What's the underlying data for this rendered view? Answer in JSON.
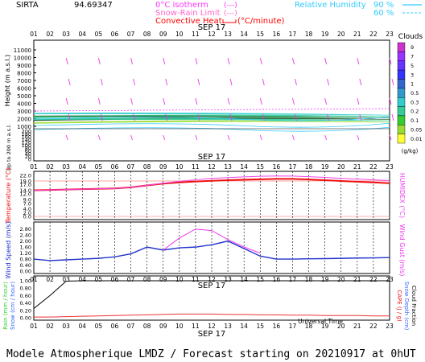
{
  "header": {
    "station": "SIRTA",
    "station_value": "94.69347",
    "legend": [
      {
        "label": "0°C isotherm",
        "color": "#ff33ff"
      },
      {
        "label": "Snow-Rain Limit",
        "color": "#ff66cc"
      },
      {
        "label": "Convective Heat.",
        "color": "#ff0000"
      }
    ],
    "convective_unit": "(°C/minute)",
    "humidity": {
      "label": "Relative Humidity",
      "v1": "90 %",
      "v2": "60 %",
      "color": "#33ccff"
    }
  },
  "hours": [
    "01",
    "02",
    "03",
    "04",
    "05",
    "06",
    "07",
    "08",
    "09",
    "10",
    "11",
    "12",
    "13",
    "14",
    "15",
    "16",
    "17",
    "18",
    "19",
    "20",
    "21",
    "22",
    "23"
  ],
  "date_label": "SEP 17",
  "universal_time": "Universal Time",
  "footer": "Modele Atmospherique LMDZ / Forecast starting on 20210917 at 0hUT",
  "chart_data": [
    {
      "type": "heatmap",
      "title": "Clouds",
      "ylabel": "Height (m a.s.l.)",
      "ylabel2": "Up to 200 m a.s.l.",
      "yticks_upper": [
        "11000",
        "10000",
        "9000",
        "8000",
        "7000",
        "6000",
        "5000",
        "4000",
        "3000",
        "2000",
        "1000"
      ],
      "yticks_lower": [
        "200",
        "180",
        "160",
        "140",
        "120",
        "100",
        "80",
        "60",
        "40",
        "20",
        "0"
      ],
      "colorbar": {
        "label": "Clouds",
        "unit": "(g/kg)",
        "ticks": [
          "9",
          "7",
          "5",
          "3",
          "1",
          "0.5",
          "0.3",
          "0.2",
          "0.1",
          "0.05",
          "0.01"
        ],
        "colors": [
          "#cc33cc",
          "#9933ff",
          "#6633ff",
          "#3333ff",
          "#3366cc",
          "#3399cc",
          "#33cccc",
          "#33cc99",
          "#33cc33",
          "#99dd33",
          "#ffff33"
        ]
      },
      "isotherm_0C_m": 3000,
      "cloud_layer_m": [
        1500,
        2600
      ]
    },
    {
      "type": "line",
      "ylabel": "Temperature (°C)",
      "ylabel2": "HUMIDEX (°C)",
      "yticks": [
        "22.0",
        "19.0",
        "17.0",
        "14.0",
        "12.0",
        "9.0",
        "7.0",
        "4.0",
        "2.0",
        "0.0"
      ],
      "ylim": [
        0,
        22
      ],
      "x": [
        "01",
        "02",
        "03",
        "04",
        "05",
        "06",
        "07",
        "08",
        "09",
        "10",
        "11",
        "12",
        "13",
        "14",
        "15",
        "16",
        "17",
        "18",
        "19",
        "20",
        "21",
        "22",
        "23"
      ],
      "series": [
        {
          "name": "Temperature",
          "color": "#ee1111",
          "values": [
            14.0,
            14.2,
            14.4,
            14.6,
            14.8,
            15.0,
            15.6,
            16.6,
            17.6,
            18.2,
            18.7,
            19.1,
            19.4,
            19.7,
            19.9,
            20.1,
            20.1,
            19.8,
            19.4,
            19.0,
            18.6,
            18.2,
            17.8
          ]
        },
        {
          "name": "HUMIDEX",
          "color": "#ee44ee",
          "values": [
            14.0,
            14.2,
            14.4,
            14.6,
            14.8,
            15.0,
            15.6,
            16.6,
            17.8,
            18.8,
            19.6,
            20.4,
            20.8,
            21.2,
            21.5,
            21.7,
            21.6,
            21.3,
            20.9,
            20.4,
            20.0,
            19.6,
            19.2
          ]
        }
      ],
      "hlines": [
        19.0,
        0.0
      ]
    },
    {
      "type": "line",
      "ylabel": "Wind Speed (m/s)",
      "ylabel2": "Wind Gust (m/s)",
      "yticks": [
        "2.80",
        "2.40",
        "2.00",
        "1.60",
        "1.20",
        "0.80",
        "0.40",
        "0.00"
      ],
      "ylim": [
        0,
        3.0
      ],
      "series": [
        {
          "name": "Wind Speed",
          "color": "#2233cc",
          "values": [
            0.8,
            0.7,
            0.75,
            0.8,
            0.85,
            0.95,
            1.15,
            1.6,
            1.4,
            1.55,
            1.6,
            1.75,
            2.0,
            1.5,
            1.0,
            0.8,
            0.8,
            0.82,
            0.83,
            0.85,
            0.87,
            0.88,
            0.9
          ]
        },
        {
          "name": "Wind Gust",
          "color": "#ee33ee",
          "values": [
            null,
            null,
            null,
            null,
            null,
            null,
            null,
            null,
            1.4,
            2.2,
            2.8,
            2.7,
            2.1,
            1.6,
            1.2,
            null,
            null,
            null,
            null,
            null,
            null,
            null,
            null
          ]
        }
      ]
    },
    {
      "type": "line",
      "ylabel": "Rain (mm / hour)",
      "ylabel_snow": "Snow (cm / hour)",
      "ylabel2": "CAPE (J / g)",
      "ylabel3": "Snow Depth (cm)",
      "ylabel4": "Cloud Fraction",
      "yticks": [
        "1.00",
        "0.80",
        "0.60",
        "0.40",
        "0.20",
        "0.00"
      ],
      "ylim": [
        0,
        1.0
      ],
      "series": [
        {
          "name": "Cloud Fraction",
          "color": "#000000",
          "values": [
            0.25,
            0.6,
            0.99,
            1.0,
            1.0,
            1.0,
            1.0,
            1.0,
            1.0,
            1.0,
            1.0,
            1.0,
            1.0,
            1.0,
            1.0,
            1.0,
            1.0,
            1.0,
            1.0,
            1.0,
            1.0,
            1.0,
            1.0
          ]
        },
        {
          "name": "CAPE",
          "color": "#ee3333",
          "values": [
            0.02,
            0.02,
            0.03,
            0.04,
            0.05,
            0.06,
            0.07,
            0.08,
            0.09,
            0.1,
            0.1,
            0.1,
            0.09,
            0.09,
            0.08,
            0.08,
            0.07,
            0.07,
            0.06,
            0.06,
            0.06,
            0.05,
            0.05
          ]
        }
      ]
    }
  ]
}
